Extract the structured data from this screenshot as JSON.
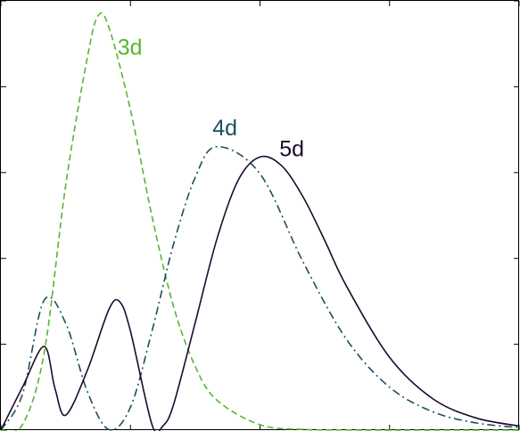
{
  "chart_data": {
    "type": "line",
    "grid": false,
    "xlim": [
      0,
      12
    ],
    "ylim": [
      0,
      0.25
    ],
    "x_ticks": [
      0,
      3,
      6,
      9,
      12
    ],
    "y_ticks": [
      0,
      0.05,
      0.1,
      0.15,
      0.2,
      0.25
    ],
    "series": [
      {
        "name": "3d",
        "color": "#57b630",
        "dash": "dashed",
        "x": [
          0,
          0.5,
          1,
          1.5,
          2,
          2.25,
          2.5,
          3,
          3.5,
          4,
          4.5,
          5,
          6,
          7,
          8,
          9,
          10,
          11,
          12
        ],
        "y": [
          0,
          0.0032,
          0.0446,
          0.1426,
          0.2167,
          0.2413,
          0.2347,
          0.1865,
          0.1244,
          0.0718,
          0.0371,
          0.0175,
          0.0031,
          0.0004,
          0.0001,
          0,
          0,
          0,
          0
        ]
      },
      {
        "name": "4d",
        "color": "#1d4f5c",
        "dash": "dashdot",
        "x": [
          0,
          0.5,
          1,
          1.5,
          2,
          2.5,
          3,
          3.5,
          4,
          4.5,
          5,
          6,
          7,
          8,
          9,
          10,
          11,
          12
        ],
        "y": [
          0,
          0.0209,
          0.0756,
          0.0623,
          0.0226,
          0.0003,
          0.0133,
          0.0578,
          0.1085,
          0.1472,
          0.1651,
          0.1493,
          0.0978,
          0.053,
          0.025,
          0.0107,
          0.0042,
          0.0015
        ]
      },
      {
        "name": "5d",
        "color": "#1d0a2e",
        "dash": "solid",
        "x": [
          0,
          0.5,
          1,
          1.25,
          1.5,
          2,
          2.5,
          2.75,
          3,
          3.5,
          3.75,
          4,
          4.5,
          5,
          5.5,
          6,
          6.5,
          7,
          7.5,
          8,
          9,
          10,
          11,
          12
        ],
        "y": [
          0,
          0.025,
          0.0487,
          0.0245,
          0.0087,
          0.0347,
          0.0702,
          0.0748,
          0.0577,
          0.0031,
          0.0024,
          0.015,
          0.0626,
          0.1111,
          0.1458,
          0.1591,
          0.154,
          0.1357,
          0.1104,
          0.084,
          0.0424,
          0.0183,
          0.0071,
          0.0024
        ]
      }
    ],
    "annotations": [
      {
        "text": "3d",
        "x": 2.7,
        "y": 0.222
      },
      {
        "text": "4d",
        "x": 4.9,
        "y": 0.175
      },
      {
        "text": "5d",
        "x": 6.45,
        "y": 0.163
      }
    ]
  }
}
